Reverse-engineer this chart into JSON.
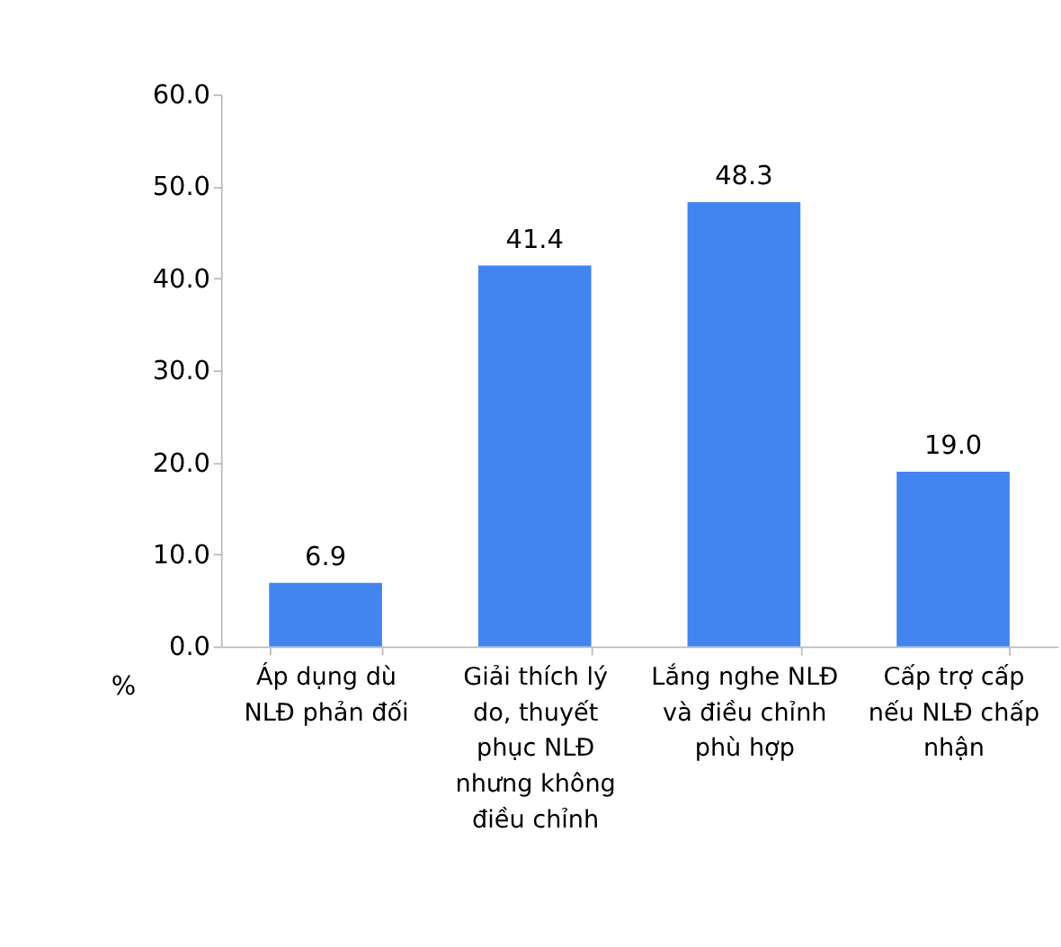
{
  "chart_data": {
    "type": "bar",
    "ylabel": "%",
    "categories": [
      "Áp dụng dù NLĐ phản đối",
      "Giải thích lý do, thuyết phục NLĐ nhưng không điều chỉnh",
      "Lắng nghe NLĐ và điều chỉnh phù hợp",
      "Cấp trợ cấp nếu NLĐ chấp nhận"
    ],
    "values": [
      6.9,
      41.4,
      48.3,
      19.0
    ],
    "color": "#4285f0",
    "ylim": [
      0,
      60
    ],
    "yticks": [
      {
        "value": 0,
        "label": "0.0"
      },
      {
        "value": 10,
        "label": "10.0"
      },
      {
        "value": 20,
        "label": "20.0"
      },
      {
        "value": 30,
        "label": "30.0"
      },
      {
        "value": 40,
        "label": "40.0"
      },
      {
        "value": 50,
        "label": "50.0"
      },
      {
        "value": 60,
        "label": "60.0"
      }
    ],
    "value_labels": [
      "6.9",
      "41.4",
      "48.3",
      "19.0"
    ],
    "grid": false
  }
}
